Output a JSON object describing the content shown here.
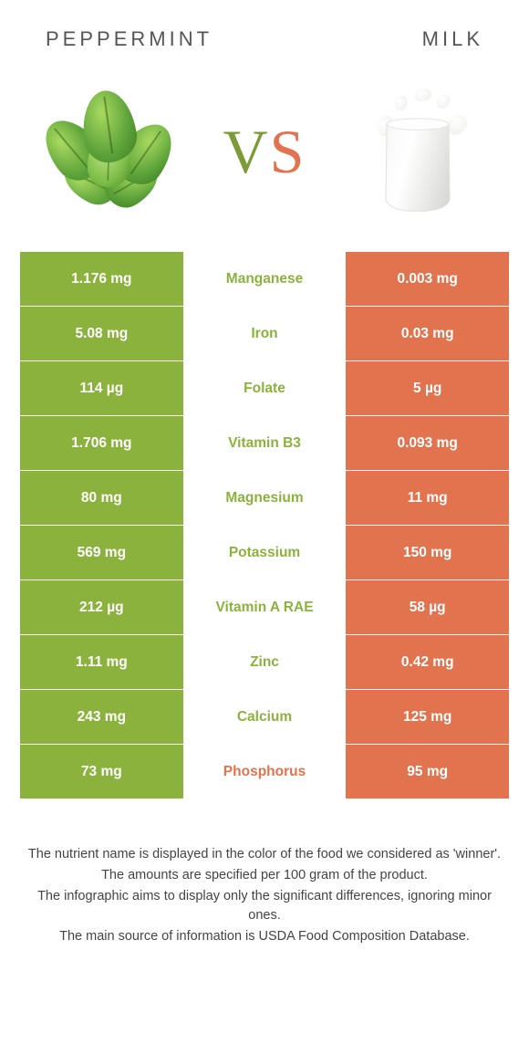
{
  "colors": {
    "peppermint": "#8bb23d",
    "milk": "#e1734f",
    "row_border": "#ffffff",
    "value_text": "#ffffff",
    "background": "#ffffff"
  },
  "header": {
    "left_title": "Peppermint",
    "right_title": "Milk"
  },
  "vs": {
    "v": "V",
    "s": "S"
  },
  "nutrients": [
    {
      "name": "Manganese",
      "left": "1.176 mg",
      "right": "0.003 mg",
      "winner": "left"
    },
    {
      "name": "Iron",
      "left": "5.08 mg",
      "right": "0.03 mg",
      "winner": "left"
    },
    {
      "name": "Folate",
      "left": "114 µg",
      "right": "5 µg",
      "winner": "left"
    },
    {
      "name": "Vitamin B3",
      "left": "1.706 mg",
      "right": "0.093 mg",
      "winner": "left"
    },
    {
      "name": "Magnesium",
      "left": "80 mg",
      "right": "11 mg",
      "winner": "left"
    },
    {
      "name": "Potassium",
      "left": "569 mg",
      "right": "150 mg",
      "winner": "left"
    },
    {
      "name": "Vitamin A RAE",
      "left": "212 µg",
      "right": "58 µg",
      "winner": "left"
    },
    {
      "name": "Zinc",
      "left": "1.11 mg",
      "right": "0.42 mg",
      "winner": "left"
    },
    {
      "name": "Calcium",
      "left": "243 mg",
      "right": "125 mg",
      "winner": "left"
    },
    {
      "name": "Phosphorus",
      "left": "73 mg",
      "right": "95 mg",
      "winner": "right"
    }
  ],
  "footnotes": [
    "The nutrient name is displayed in the color of the food we considered as 'winner'.",
    "The amounts are specified per 100 gram of the product.",
    "The infographic aims to display only the significant differences, ignoring minor ones.",
    "The main source of information is USDA Food Composition Database."
  ]
}
